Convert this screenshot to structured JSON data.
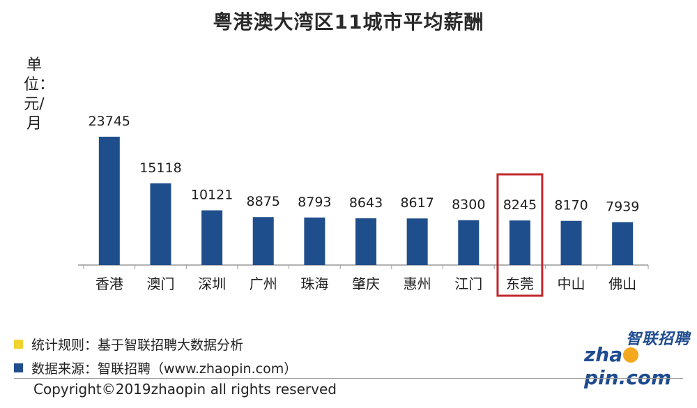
{
  "title": "粤港澳大湾区11城市平均薪酬",
  "unit_label": "单位：元/月",
  "colors": {
    "bar": "#1f4e8c",
    "axis": "#999999",
    "highlight_box": "#c0282d",
    "legend_rule": "#f2d22e",
    "legend_source": "#1f4e8c"
  },
  "chart_data": {
    "type": "bar",
    "categories": [
      "香港",
      "澳门",
      "深圳",
      "广州",
      "珠海",
      "肇庆",
      "惠州",
      "江门",
      "东莞",
      "中山",
      "佛山"
    ],
    "values": [
      23745,
      15118,
      10121,
      8875,
      8793,
      8643,
      8617,
      8300,
      8245,
      8170,
      7939
    ],
    "highlight": "东莞",
    "grid": false
  },
  "legend": {
    "rule_text": "统计规则：基于智联招聘大数据分析",
    "source_text": "数据来源：智联招聘（www.zhaopin.com）"
  },
  "copyright": "Copyright©2019zhaopin all rights reserved",
  "logo": {
    "cn": "智联招聘",
    "en_prefix": "zha",
    "en_suffix": "pin.com"
  }
}
